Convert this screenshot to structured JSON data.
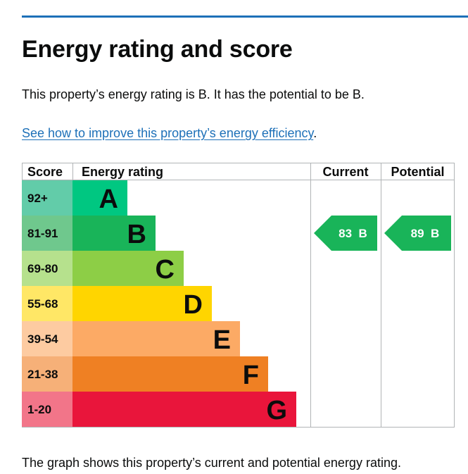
{
  "page": {
    "title": "Energy rating and score",
    "summary": "This property’s energy rating is B. It has the potential to be B.",
    "improve_link": "See how to improve this property’s energy efficiency",
    "improve_suffix": ".",
    "caption": "The graph shows this property’s current and potential energy rating.",
    "accent_color": "#1d70b8"
  },
  "chart_data": {
    "type": "bar",
    "headers": {
      "score": "Score",
      "rating": "Energy rating",
      "current": "Current",
      "potential": "Potential"
    },
    "bands": [
      {
        "letter": "A",
        "range": "92+",
        "band_color": "#00c781",
        "score_color": "#62cca9",
        "light_text": false
      },
      {
        "letter": "B",
        "range": "81-91",
        "band_color": "#19b459",
        "score_color": "#6fc88d",
        "light_text": false
      },
      {
        "letter": "C",
        "range": "69-80",
        "band_color": "#8dce46",
        "score_color": "#b6e18d",
        "light_text": false
      },
      {
        "letter": "D",
        "range": "55-68",
        "band_color": "#ffd500",
        "score_color": "#ffe766",
        "light_text": false
      },
      {
        "letter": "E",
        "range": "39-54",
        "band_color": "#fcaa65",
        "score_color": "#fdcba1",
        "light_text": false
      },
      {
        "letter": "F",
        "range": "21-38",
        "band_color": "#ef8023",
        "score_color": "#f6b078",
        "light_text": false
      },
      {
        "letter": "G",
        "range": "1-20",
        "band_color": "#e9153b",
        "score_color": "#f27589",
        "light_text": false
      }
    ],
    "current": {
      "score": 83,
      "band": "B",
      "label": "83  B",
      "color": "#19b459"
    },
    "potential": {
      "score": 89,
      "band": "B",
      "label": "89  B",
      "color": "#19b459"
    },
    "grid_color": "#b1b4b6"
  }
}
